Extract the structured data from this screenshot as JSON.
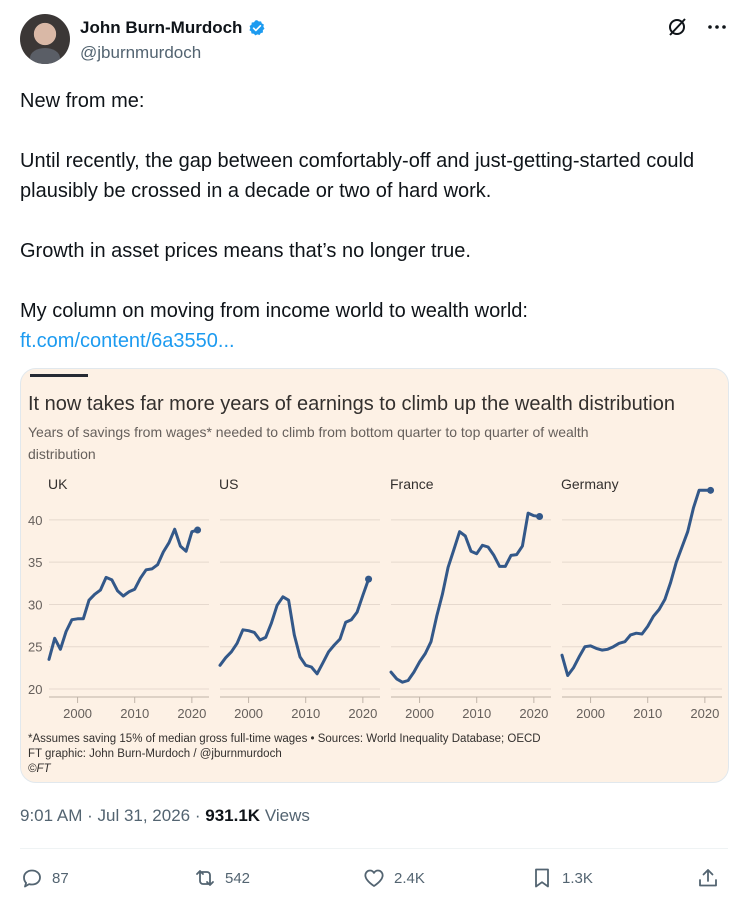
{
  "author": {
    "name": "John Burn-Murdoch",
    "handle": "@jburnmurdoch",
    "verified": true
  },
  "tweet": {
    "line1": "New from me:",
    "line2": "Until recently, the gap between comfortably-off and just-getting-started could plausibly be crossed in a decade or two of hard work.",
    "line3": "Growth in asset prices means that’s no longer true.",
    "line4": "My column on moving from income world to wealth world:",
    "link": "ft.com/content/6a3550..."
  },
  "meta": {
    "time": "9:01 AM",
    "date": "Jul 31, 2026",
    "views_count": "931.1K",
    "views_label": "Views"
  },
  "actions": {
    "replies": "87",
    "reposts": "542",
    "likes": "2.4K",
    "bookmarks": "1.3K"
  },
  "colors": {
    "accent": "#1d9bf0",
    "card_bg": "#fdf1e5",
    "line": "#335889"
  },
  "chart_data": {
    "type": "line",
    "title": "It now takes far more years of earnings to climb up the wealth distribution",
    "subtitle": "Years of savings from wages* needed to climb from bottom quarter to top quarter of wealth distribution",
    "footnote1": "*Assumes saving 15% of median gross full-time wages • Sources: World Inequality Database; OECD",
    "footnote2": "FT graphic: John Burn-Murdoch / @jburnmurdoch",
    "footnote3": "©FT",
    "ylim": [
      20,
      42
    ],
    "yticks": [
      20,
      25,
      30,
      35,
      40
    ],
    "xticks": [
      2000,
      2010,
      2020
    ],
    "xlim": [
      1995,
      2023
    ],
    "grid": true,
    "panels": [
      {
        "name": "UK",
        "x": [
          1995,
          1996,
          1997,
          1998,
          1999,
          2000,
          2001,
          2002,
          2003,
          2004,
          2005,
          2006,
          2007,
          2008,
          2009,
          2010,
          2011,
          2012,
          2013,
          2014,
          2015,
          2016,
          2017,
          2018,
          2019,
          2020,
          2021
        ],
        "y": [
          23.5,
          26.0,
          24.7,
          26.8,
          28.2,
          28.3,
          28.3,
          30.5,
          31.2,
          31.7,
          33.2,
          32.9,
          31.6,
          31.0,
          31.5,
          31.8,
          33.1,
          34.1,
          34.2,
          34.7,
          36.2,
          37.3,
          38.9,
          36.9,
          36.3,
          38.6,
          38.8
        ]
      },
      {
        "name": "US",
        "x": [
          1995,
          1996,
          1997,
          1998,
          1999,
          2000,
          2001,
          2002,
          2003,
          2004,
          2005,
          2006,
          2007,
          2008,
          2009,
          2010,
          2011,
          2012,
          2013,
          2014,
          2015,
          2016,
          2017,
          2018,
          2019,
          2020,
          2021
        ],
        "y": [
          22.8,
          23.7,
          24.4,
          25.4,
          27.0,
          26.9,
          26.7,
          25.8,
          26.1,
          27.8,
          29.9,
          30.9,
          30.5,
          26.4,
          23.8,
          22.8,
          22.6,
          21.8,
          23.1,
          24.4,
          25.2,
          25.9,
          27.9,
          28.2,
          29.1,
          31.1,
          33.0
        ]
      },
      {
        "name": "France",
        "x": [
          1995,
          1996,
          1997,
          1998,
          1999,
          2000,
          2001,
          2002,
          2003,
          2004,
          2005,
          2006,
          2007,
          2008,
          2009,
          2010,
          2011,
          2012,
          2013,
          2014,
          2015,
          2016,
          2017,
          2018,
          2019,
          2020,
          2021
        ],
        "y": [
          22.0,
          21.2,
          20.8,
          21.0,
          22.0,
          23.2,
          24.2,
          25.6,
          28.6,
          31.2,
          34.4,
          36.5,
          38.6,
          38.1,
          36.3,
          36.0,
          37.0,
          36.8,
          35.8,
          34.5,
          34.5,
          35.8,
          35.9,
          36.9,
          40.8,
          40.5,
          40.4
        ]
      },
      {
        "name": "Germany",
        "x": [
          1995,
          1996,
          1997,
          1998,
          1999,
          2000,
          2001,
          2002,
          2003,
          2004,
          2005,
          2006,
          2007,
          2008,
          2009,
          2010,
          2011,
          2012,
          2013,
          2014,
          2015,
          2016,
          2017,
          2018,
          2019,
          2020,
          2021
        ],
        "y": [
          24.0,
          21.6,
          22.5,
          23.8,
          25.0,
          25.1,
          24.8,
          24.6,
          24.7,
          25.0,
          25.4,
          25.6,
          26.4,
          26.6,
          26.5,
          27.4,
          28.6,
          29.4,
          30.6,
          32.6,
          35.0,
          36.8,
          38.6,
          41.4,
          43.5,
          43.5,
          43.5
        ]
      }
    ]
  }
}
